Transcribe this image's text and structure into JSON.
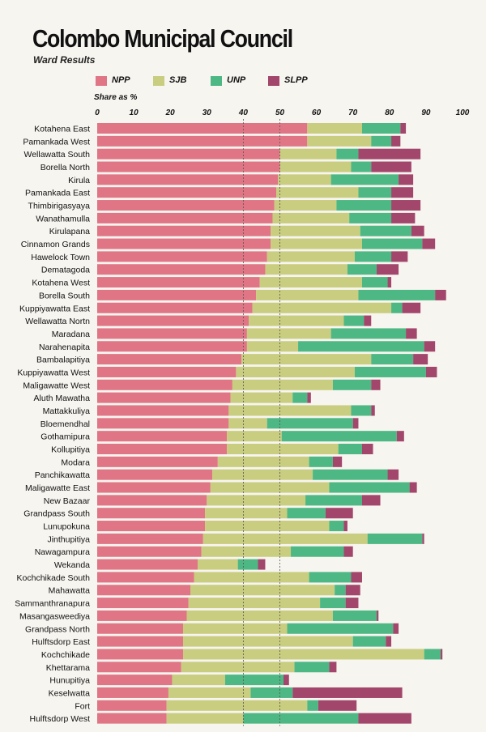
{
  "header": {
    "title": "Colombo Municipal Council",
    "subtitle": "Ward Results"
  },
  "chart_data": {
    "type": "bar",
    "orientation": "horizontal",
    "stacked": true,
    "xlabel": "Share as %",
    "xlim": [
      0,
      100
    ],
    "xticks": [
      0,
      10,
      20,
      30,
      40,
      50,
      60,
      70,
      80,
      90,
      100
    ],
    "reference_lines": [
      40,
      50
    ],
    "legend_position": "top",
    "categories": [
      "Kotahena East",
      "Pamankada West",
      "Wellawatta South",
      "Borella North",
      "Kirula",
      "Pamankada East",
      "Thimbirigasyaya",
      "Wanathamulla",
      "Kirulapana",
      "Cinnamon Grands",
      "Hawelock Town",
      "Dematagoda",
      "Kotahena West",
      "Borella South",
      "Kuppiyawatta East",
      "Wellawatta Nortn",
      "Maradana",
      "Narahenapita",
      "Bambalapitiya",
      "Kuppiyawatta  West",
      "Maligawatte West",
      "Aluth Mawatha",
      "Mattakkuliya",
      "Bloemendhal",
      "Gothamipura",
      "Kollupitiya",
      "Modara",
      "Panchikawatta",
      "Maligawatte East",
      "New Bazaar",
      "Grandpass South",
      "Lunupokuna",
      "Jinthupitiya",
      "Nawagampura",
      "Wekanda",
      "Kochchikade South",
      "Mahawatta",
      "Sammanthranapura",
      "Masangasweediya",
      "Grandpass North",
      "Hulftsdorp East",
      "Kochchikade",
      "Khettarama",
      "Hunupitiya",
      "Keselwatta",
      "Fort",
      "Hulftsdorp West"
    ],
    "series": [
      {
        "name": "NPP",
        "color": "#e07585",
        "values": [
          57.5,
          57.5,
          50,
          50,
          49.5,
          49,
          48.5,
          48,
          47.5,
          47.5,
          46.5,
          46,
          44.5,
          43.5,
          42.5,
          41.5,
          41,
          41,
          39.5,
          38,
          37,
          36.5,
          36,
          36,
          35.5,
          35.5,
          33,
          31.5,
          31,
          30,
          29.5,
          29.5,
          29,
          28.5,
          27.5,
          26.5,
          25.5,
          25,
          24.5,
          23.5,
          23.5,
          23.5,
          23,
          20.5,
          19.5,
          19,
          19
        ]
      },
      {
        "name": "SJB",
        "color": "#c9cd7f",
        "values": [
          15,
          17.5,
          15.5,
          19.5,
          14.5,
          22.5,
          17,
          21,
          24.5,
          25,
          24,
          22.5,
          28,
          28,
          38,
          26,
          23,
          14,
          35.5,
          32.5,
          27.5,
          17,
          33.5,
          10.5,
          15,
          30.5,
          25,
          27.5,
          32.5,
          27,
          22.5,
          34,
          45,
          24.5,
          11,
          31.5,
          39.5,
          36,
          40,
          28.5,
          46.5,
          66,
          31,
          14.5,
          22.5,
          38.5,
          21
        ]
      },
      {
        "name": "UNP",
        "color": "#4db884",
        "values": [
          10.5,
          5.5,
          6,
          5.5,
          18.5,
          9,
          15,
          11.5,
          14,
          16.5,
          10,
          8,
          7,
          21,
          3,
          5.5,
          20.5,
          34.5,
          11.5,
          19.5,
          10.5,
          4,
          5.5,
          23.5,
          31.5,
          6.5,
          6.5,
          20.5,
          22,
          15.5,
          10.5,
          4,
          15,
          14.5,
          5.5,
          11.5,
          3,
          7,
          12,
          29,
          9,
          4.5,
          9.5,
          16,
          11.5,
          3,
          31.5
        ]
      },
      {
        "name": "SLPP",
        "color": "#a2466c",
        "values": [
          1.5,
          2.5,
          17,
          11,
          4,
          6,
          8,
          6.5,
          3.5,
          3.5,
          4.5,
          6,
          1,
          3,
          5,
          2,
          3,
          3,
          4,
          3,
          2.5,
          1,
          1,
          1.5,
          2,
          3,
          2.5,
          3,
          2,
          5,
          7.5,
          1,
          0.5,
          2.5,
          2,
          3,
          4,
          3.5,
          0.5,
          1.5,
          1.5,
          0.5,
          2,
          1.5,
          30,
          10.5,
          14.5
        ]
      }
    ]
  }
}
